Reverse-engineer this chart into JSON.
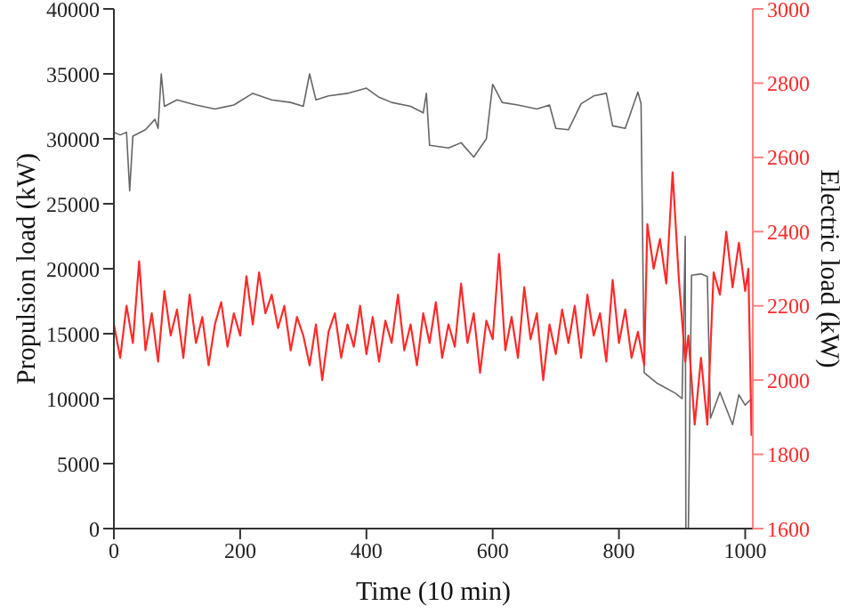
{
  "chart_data": {
    "type": "line",
    "xlabel": "Time (10 min)",
    "ylabel": "Propulsion load (kW)",
    "y2label": "Electric load (kW)",
    "xlim": [
      0,
      1012
    ],
    "xticks": [
      0,
      200,
      400,
      600,
      800,
      1000
    ],
    "ylim": [
      0,
      40000
    ],
    "yticks": [
      0,
      5000,
      10000,
      15000,
      20000,
      25000,
      30000,
      35000,
      40000
    ],
    "y2lim": [
      1600,
      3000
    ],
    "y2ticks": [
      1600,
      1800,
      2000,
      2200,
      2400,
      2600,
      2800,
      3000
    ],
    "marker": "none",
    "line_style": "solid",
    "series": [
      {
        "color": "#666666",
        "x": [
          0,
          10,
          20,
          25,
          30,
          50,
          65,
          70,
          75,
          80,
          100,
          130,
          160,
          190,
          220,
          250,
          280,
          300,
          310,
          320,
          340,
          370,
          400,
          420,
          440,
          470,
          490,
          495,
          500,
          530,
          550,
          570,
          590,
          600,
          615,
          640,
          670,
          690,
          700,
          720,
          740,
          760,
          780,
          790,
          810,
          830,
          835,
          840,
          860,
          890,
          900,
          905,
          906,
          910,
          915,
          930,
          940,
          945,
          960,
          980,
          990,
          1000,
          1010
        ],
        "values": [
          30500,
          30300,
          30500,
          26000,
          30200,
          30700,
          31500,
          30800,
          35000,
          32500,
          33000,
          32600,
          32300,
          32600,
          33500,
          33000,
          32800,
          32500,
          35000,
          33000,
          33300,
          33500,
          33900,
          33200,
          32800,
          32500,
          32000,
          33500,
          29500,
          29300,
          29700,
          28600,
          30000,
          34200,
          32800,
          32600,
          32300,
          32600,
          30800,
          30700,
          32700,
          33300,
          33500,
          31000,
          30800,
          33600,
          32700,
          12000,
          11200,
          10400,
          10000,
          22500,
          0,
          0,
          19500,
          19600,
          19400,
          8500,
          10500,
          8000,
          10300,
          9500,
          10000
        ]
      },
      {
        "color": "#ff2a2a",
        "axis": "y2",
        "x": [
          0,
          10,
          20,
          30,
          40,
          50,
          60,
          70,
          80,
          90,
          100,
          110,
          120,
          130,
          140,
          150,
          160,
          170,
          180,
          190,
          200,
          210,
          220,
          230,
          240,
          250,
          260,
          270,
          280,
          290,
          300,
          310,
          320,
          330,
          340,
          350,
          360,
          370,
          380,
          390,
          400,
          410,
          420,
          430,
          440,
          450,
          460,
          470,
          480,
          490,
          500,
          510,
          520,
          530,
          540,
          550,
          560,
          570,
          580,
          590,
          600,
          610,
          620,
          630,
          640,
          650,
          660,
          670,
          680,
          690,
          700,
          710,
          720,
          730,
          740,
          750,
          760,
          770,
          780,
          790,
          800,
          810,
          820,
          830,
          840,
          845,
          855,
          865,
          875,
          885,
          895,
          905,
          910,
          920,
          930,
          940,
          950,
          960,
          970,
          980,
          990,
          1000,
          1005,
          1010
        ],
        "values": [
          2150,
          2060,
          2200,
          2100,
          2320,
          2080,
          2180,
          2050,
          2240,
          2120,
          2190,
          2060,
          2230,
          2100,
          2170,
          2040,
          2150,
          2210,
          2090,
          2180,
          2120,
          2280,
          2150,
          2290,
          2180,
          2230,
          2140,
          2200,
          2080,
          2170,
          2120,
          2040,
          2150,
          2000,
          2130,
          2180,
          2060,
          2150,
          2090,
          2200,
          2070,
          2170,
          2050,
          2160,
          2100,
          2230,
          2080,
          2150,
          2040,
          2180,
          2100,
          2210,
          2060,
          2150,
          2090,
          2260,
          2100,
          2180,
          2020,
          2160,
          2110,
          2340,
          2080,
          2170,
          2060,
          2250,
          2110,
          2180,
          2000,
          2150,
          2070,
          2190,
          2100,
          2200,
          2060,
          2230,
          2120,
          2180,
          2050,
          2270,
          2100,
          2190,
          2060,
          2130,
          2040,
          2420,
          2300,
          2380,
          2260,
          2560,
          2270,
          2050,
          2120,
          1880,
          2060,
          1880,
          2290,
          2230,
          2400,
          2250,
          2370,
          2240,
          2300,
          1850
        ]
      }
    ]
  }
}
